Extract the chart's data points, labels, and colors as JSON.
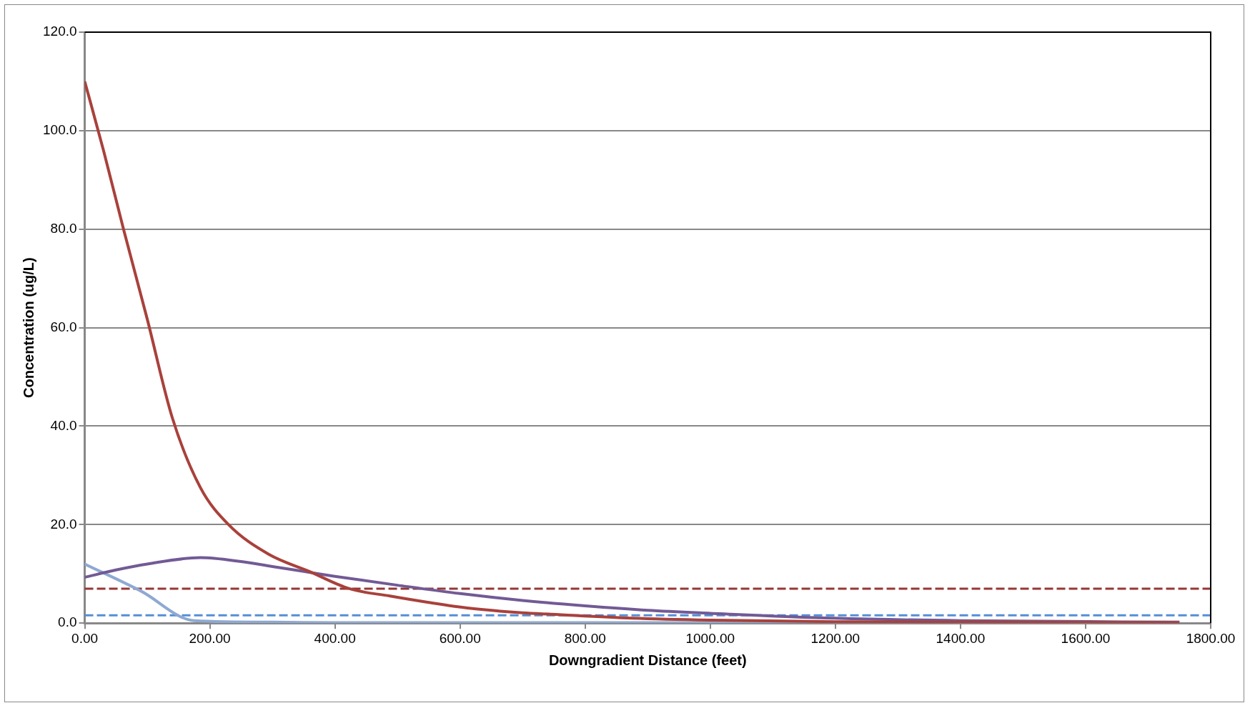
{
  "chart_data": {
    "type": "line",
    "xlabel": "Downgradient Distance (feet)",
    "ylabel": "Concentration (ug/L)",
    "xlim": [
      0,
      1800
    ],
    "xticks": [
      {
        "value": 0,
        "label": "0.00"
      },
      {
        "value": 200,
        "label": "200.00"
      },
      {
        "value": 400,
        "label": "400.00"
      },
      {
        "value": 600,
        "label": "600.00"
      },
      {
        "value": 800,
        "label": "800.00"
      },
      {
        "value": 1000,
        "label": "1000.00"
      },
      {
        "value": 1200,
        "label": "1200.00"
      },
      {
        "value": 1400,
        "label": "1400.00"
      },
      {
        "value": 1600,
        "label": "1600.00"
      },
      {
        "value": 1800,
        "label": "1800.00"
      }
    ],
    "ylim": [
      0,
      120
    ],
    "yticks": [
      {
        "value": 0,
        "label": "0.0"
      },
      {
        "value": 20,
        "label": "20.0"
      },
      {
        "value": 40,
        "label": "40.0"
      },
      {
        "value": 60,
        "label": "60.0"
      },
      {
        "value": 80,
        "label": "80.0"
      },
      {
        "value": 100,
        "label": "100.0"
      },
      {
        "value": 120,
        "label": "120.0"
      }
    ],
    "grid": "y",
    "legend": false,
    "marker": "none",
    "series": [
      {
        "color": "#a9413b",
        "x": [
          0,
          30,
          62,
          100,
          140,
          185,
          230,
          294,
          359,
          423,
          488,
          550,
          617,
          700,
          746,
          875,
          1000,
          1200,
          1400,
          1750
        ],
        "values": [
          110,
          96,
          80,
          61.7,
          41.7,
          27.5,
          20,
          14,
          10.5,
          7,
          5.5,
          4.2,
          3,
          2.1,
          1.8,
          1,
          0.6,
          0.3,
          0.2,
          0.1
        ]
      },
      {
        "color": "#725a95",
        "x": [
          0,
          50,
          100,
          185,
          250,
          300,
          350,
          400,
          500,
          600,
          700,
          800,
          900,
          1000,
          1200,
          1400,
          1750
        ],
        "values": [
          9.3,
          10.8,
          12,
          13.3,
          12.5,
          11.5,
          10.5,
          9.5,
          7.7,
          6,
          4.6,
          3.5,
          2.6,
          2,
          1,
          0.5,
          0.2
        ]
      },
      {
        "color": "#8ea9d2",
        "x": [
          0,
          90,
          175,
          300,
          400,
          1000,
          1750
        ],
        "values": [
          12,
          6.5,
          0.5,
          0.2,
          0.1,
          0.1,
          0.1
        ]
      }
    ],
    "ref_lines": [
      {
        "axis": "y",
        "value": 7,
        "color": "#953735",
        "line_style": "dashed"
      },
      {
        "axis": "y",
        "value": 1.6,
        "color": "#558ed5",
        "line_style": "dashed"
      }
    ]
  }
}
